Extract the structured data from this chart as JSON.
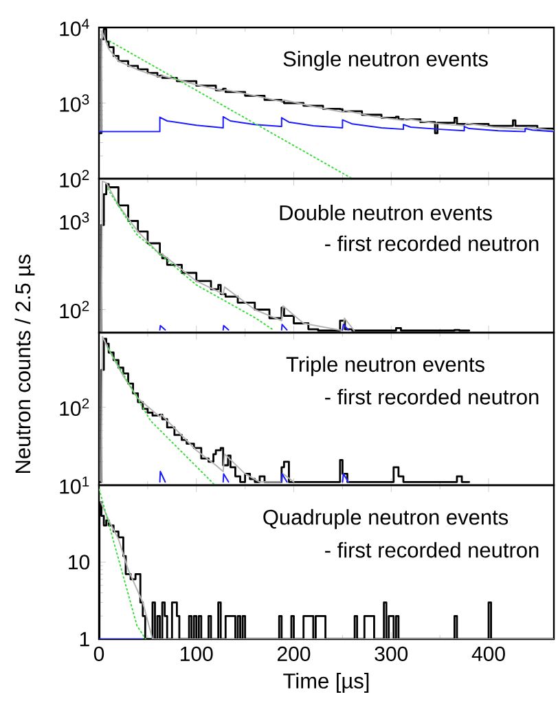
{
  "chart_data": [
    {
      "type": "step",
      "title": "Single neutron events",
      "xlim": [
        0,
        467
      ],
      "ylim": [
        100,
        10000
      ],
      "log": true,
      "tick_labels": "y",
      "marker": "none",
      "xticks": [
        0,
        100,
        200,
        300,
        400
      ],
      "yticks": [
        {
          "value": 100,
          "label": "10$^{2}$"
        },
        {
          "value": 1000,
          "label": "10$^{3}$"
        },
        {
          "value": 10000,
          "label": "10$^{4}$"
        }
      ],
      "series": [
        {
          "color": "#000000",
          "x": [
            0,
            2.5,
            5,
            7.5,
            10,
            15,
            20,
            30,
            40,
            50,
            60,
            62.5,
            65,
            80,
            100,
            120,
            127.5,
            130,
            150,
            170,
            187.5,
            190,
            210,
            230,
            247.5,
            250,
            270,
            290,
            305,
            307.5,
            330,
            345,
            347.5,
            365,
            367.5,
            400,
            425,
            427.5,
            450,
            467
          ],
          "values": [
            400,
            7000,
            9500,
            6500,
            5500,
            4200,
            3600,
            3100,
            2800,
            2500,
            2250,
            2300,
            2150,
            1950,
            1700,
            1480,
            1550,
            1400,
            1250,
            1100,
            1050,
            1000,
            920,
            840,
            830,
            780,
            700,
            640,
            660,
            610,
            560,
            400,
            550,
            640,
            530,
            500,
            590,
            500,
            460,
            430
          ]
        },
        {
          "type": "line",
          "color": "#b4b4b4",
          "x": [
            2.5,
            3,
            10,
            20,
            40,
            62.5,
            65,
            100,
            127.5,
            130,
            160,
            187.5,
            190,
            220,
            250,
            252.5,
            280,
            312.5,
            315,
            345,
            375,
            377.5,
            405,
            437.5,
            440,
            467
          ],
          "values": [
            420,
            9000,
            5200,
            3600,
            2750,
            2200,
            2300,
            1750,
            1450,
            1500,
            1250,
            1050,
            1100,
            900,
            760,
            800,
            670,
            590,
            620,
            540,
            500,
            540,
            480,
            450,
            480,
            430
          ]
        },
        {
          "type": "line",
          "color": "#1a1aff",
          "x": [
            0,
            62.5,
            62.5,
            70,
            100,
            127.5,
            127.5,
            135,
            160,
            187.5,
            187.5,
            195,
            220,
            250,
            250,
            260,
            290,
            312.5,
            312.5,
            320,
            350,
            375,
            375,
            380,
            410,
            437.5,
            437.5,
            445,
            467
          ],
          "values": [
            420,
            420,
            650,
            580,
            510,
            470,
            660,
            580,
            520,
            490,
            640,
            560,
            500,
            470,
            600,
            530,
            470,
            450,
            520,
            480,
            450,
            430,
            490,
            460,
            430,
            420,
            460,
            440,
            420
          ]
        },
        {
          "type": "line",
          "color": "#33dd33",
          "line_style": "dotted",
          "x": [
            11,
            123,
            260
          ],
          "values": [
            6600,
            1000,
            100
          ]
        }
      ]
    },
    {
      "type": "step",
      "title": "Double neutron events",
      "subtitle": "- first recorded neutron",
      "ylabel": "Neutron counts / 2.5 µs",
      "xlim": [
        0,
        467
      ],
      "ylim": [
        55,
        3000
      ],
      "log": true,
      "tick_labels": "y",
      "marker": "none",
      "xticks": [
        0,
        100,
        200,
        300,
        400
      ],
      "yticks": [
        {
          "value": 100,
          "label": "10$^{2}$"
        },
        {
          "value": 1000,
          "label": "10$^{3}$"
        }
      ],
      "series": [
        {
          "color": "#000000",
          "x": [
            0,
            2.5,
            5,
            7.5,
            10,
            20,
            30,
            40,
            50,
            62.5,
            65,
            70,
            85,
            100,
            115,
            122.5,
            125,
            130,
            142.5,
            160,
            175,
            187.5,
            190,
            200,
            215,
            225,
            247.5,
            252.5,
            260,
            305,
            310,
            365,
            370,
            380
          ],
          "values": [
            55,
            900,
            2000,
            2600,
            2400,
            1500,
            1000,
            760,
            560,
            420,
            380,
            320,
            260,
            210,
            170,
            190,
            150,
            140,
            120,
            100,
            80,
            105,
            85,
            70,
            60,
            58,
            75,
            60,
            58,
            62,
            58,
            59,
            58,
            58
          ]
        },
        {
          "type": "line",
          "color": "#b4b4b4",
          "x": [
            2.5,
            3.5,
            7.5,
            20,
            40,
            62.5,
            64,
            100,
            127.5,
            129,
            160,
            187.5,
            189,
            210,
            250,
            252,
            262
          ],
          "values": [
            55,
            2800,
            2700,
            1500,
            760,
            420,
            430,
            210,
            150,
            180,
            100,
            75,
            110,
            70,
            58,
            80,
            58
          ]
        },
        {
          "type": "line",
          "color": "#1a1aff",
          "x": [
            62.5,
            63,
            68,
            100,
            127.5,
            128,
            133,
            160,
            187.5,
            188,
            193,
            220,
            250,
            251,
            256
          ],
          "values": [
            59,
            66,
            59,
            null,
            59,
            66,
            59,
            null,
            59,
            68,
            59,
            null,
            59,
            68,
            59
          ]
        },
        {
          "type": "line",
          "color": "#33dd33",
          "line_style": "dotted",
          "x": [
            9,
            39,
            100,
            161,
            180
          ],
          "values": [
            2300,
            700,
            190,
            80,
            58
          ]
        }
      ]
    },
    {
      "type": "step",
      "title": "Triple neutron events",
      "subtitle": "- first recorded neutron",
      "xlim": [
        0,
        467
      ],
      "ylim": [
        10,
        900
      ],
      "log": true,
      "tick_labels": "y",
      "marker": "none",
      "xticks": [
        0,
        100,
        200,
        300,
        400
      ],
      "yticks": [
        {
          "value": 10,
          "label": "10$^{1}$"
        },
        {
          "value": 100,
          "label": "10$^{2}$"
        }
      ],
      "series": [
        {
          "color": "#000000",
          "x": [
            0,
            2.5,
            5,
            7.5,
            10,
            15,
            20,
            25,
            30,
            35,
            40,
            45,
            50,
            55,
            62.5,
            65,
            70,
            77.5,
            85,
            90,
            97.5,
            105,
            112.5,
            117.5,
            120,
            125,
            127.5,
            132.5,
            135,
            140,
            145,
            150,
            155,
            160,
            165,
            170,
            180,
            185,
            187.5,
            190,
            195,
            247.5,
            250,
            255,
            302.5,
            307.5,
            312.5,
            367.5,
            372.5,
            380
          ],
          "values": [
            11,
            300,
            750,
            650,
            500,
            400,
            320,
            270,
            200,
            150,
            116,
            95,
            85,
            78,
            80,
            70,
            55,
            44,
            38,
            34,
            30,
            22,
            20,
            25,
            28,
            30,
            18,
            24,
            17,
            13,
            11,
            14,
            12,
            11,
            13,
            11,
            11,
            11,
            17,
            20,
            11,
            21,
            14,
            11,
            17,
            13,
            11,
            13,
            11,
            11
          ]
        },
        {
          "type": "line",
          "color": "#b4b4b4",
          "x": [
            2.5,
            3.5,
            10,
            25,
            40,
            62.5,
            64,
            100,
            120,
            127.5,
            129,
            150,
            165,
            187.5,
            189,
            200,
            220,
            250,
            251,
            256
          ],
          "values": [
            11,
            800,
            550,
            250,
            130,
            75,
            80,
            28,
            18,
            15,
            25,
            14,
            11,
            11,
            14,
            11,
            null,
            11,
            14,
            11
          ]
        },
        {
          "type": "line",
          "color": "#1a1aff",
          "x": [
            62.5,
            63,
            68,
            100,
            127.5,
            128,
            133,
            160,
            187.5,
            188,
            193,
            220,
            250,
            251,
            256
          ],
          "values": [
            11,
            15,
            11,
            null,
            11,
            14,
            11,
            null,
            11,
            14,
            11,
            null,
            11,
            14,
            11
          ]
        },
        {
          "type": "line",
          "color": "#33dd33",
          "line_style": "dotted",
          "x": [
            9,
            53,
            110,
            119
          ],
          "values": [
            580,
            67,
            13,
            10
          ]
        }
      ]
    },
    {
      "type": "step",
      "title": "Quadruple neutron events",
      "subtitle": "- first recorded neutron",
      "xlabel": "Time [µs]",
      "xlim": [
        0,
        467
      ],
      "ylim": [
        1,
        100
      ],
      "log": true,
      "marker": "none",
      "xticks": [
        0,
        100,
        200,
        300,
        400
      ],
      "yticks": [
        1,
        10
      ],
      "series": [
        {
          "color": "#000000",
          "x": [
            0,
            0.5,
            2.5,
            5,
            7.5,
            10,
            15,
            20,
            25,
            27.5,
            32.5,
            37.5,
            42.5,
            45,
            47.5,
            55,
            57.5,
            60,
            62.5,
            65,
            67.5,
            70,
            75,
            77.5,
            80,
            82.5,
            92.5,
            95,
            97.5,
            100,
            102.5,
            105,
            112.5,
            115,
            122.5,
            125,
            130,
            135,
            140,
            142.5,
            145,
            147.5,
            150,
            185,
            187.5,
            197.5,
            200,
            210,
            215,
            220,
            222.5,
            230,
            232.5,
            262.5,
            265,
            272.5,
            277.5,
            282.5,
            292.5,
            295,
            297.5,
            302.5,
            305,
            307.5,
            365,
            367.5,
            400,
            402.5,
            467
          ],
          "values": [
            1,
            60,
            40,
            30,
            35,
            30,
            25,
            21,
            12,
            7,
            6,
            7,
            3,
            2,
            1,
            3,
            1,
            2,
            1,
            3,
            2,
            1,
            3,
            3,
            2,
            1,
            2,
            1,
            2,
            1,
            2,
            1,
            2,
            1,
            3,
            1,
            2,
            2,
            1,
            2,
            1,
            2,
            1,
            2,
            1,
            2,
            1,
            2,
            2,
            1,
            2,
            2,
            1,
            2,
            1,
            2,
            2,
            1,
            3,
            1,
            2,
            1,
            2,
            1,
            2,
            1,
            3,
            1,
            1
          ]
        },
        {
          "type": "line",
          "color": "#b4b4b4",
          "x": [
            2,
            10,
            20,
            30,
            45,
            55,
            467
          ],
          "values": [
            60,
            35,
            20,
            8,
            3,
            1,
            1
          ]
        },
        {
          "type": "line",
          "color": "#1a1aff",
          "x": [
            0,
            45
          ],
          "values": [
            1,
            1
          ]
        },
        {
          "type": "line",
          "color": "#33dd33",
          "line_style": "dotted",
          "x": [
            0.3,
            39,
            48
          ],
          "values": [
            88,
            1.5,
            1
          ]
        }
      ]
    }
  ]
}
